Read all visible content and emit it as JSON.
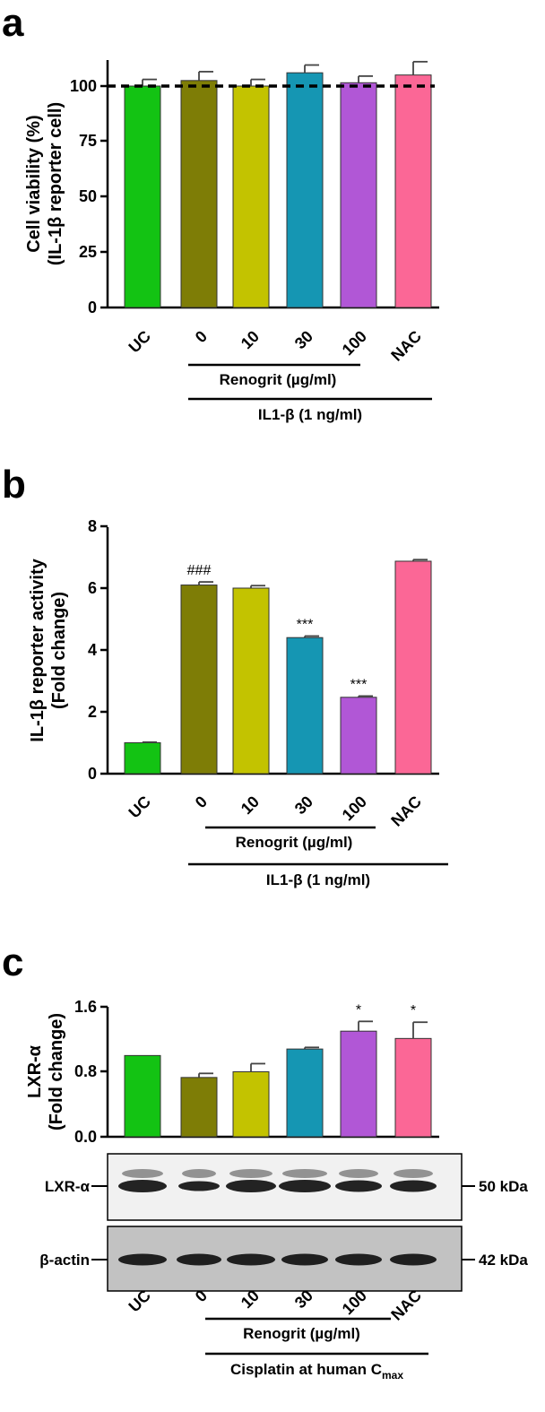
{
  "panels": [
    {
      "letter": "a",
      "ylabel_lines": [
        "Cell viability (%)",
        "(IL-1β reporter cell)"
      ],
      "groups": [
        "Renogrit (µg/ml)",
        "IL1-β (1 ng/ml)"
      ]
    },
    {
      "letter": "b",
      "ylabel_lines": [
        "IL-1β reporter activity",
        "(Fold change)"
      ],
      "groups": [
        "Renogrit (µg/ml)",
        "IL1-β (1 ng/ml)"
      ]
    },
    {
      "letter": "c",
      "ylabel_lines": [
        "LXR-α",
        "(Fold change)"
      ],
      "groups": [
        "Renogrit (µg/ml)",
        "Cisplatin at human C",
        "max"
      ],
      "blots": [
        {
          "label": "LXR-α",
          "size": "50 kDa"
        },
        {
          "label": "β-actin",
          "size": "42 kDa"
        }
      ]
    }
  ],
  "colors": [
    "#13c313",
    "#7e7d06",
    "#c3c300",
    "#1596b3",
    "#b157d6",
    "#fb6796"
  ],
  "chart_data": [
    {
      "type": "bar",
      "categories": [
        "UC",
        "0",
        "10",
        "30",
        "100",
        "NAC"
      ],
      "values": [
        100,
        102.5,
        100,
        106,
        101.5,
        105
      ],
      "errors": [
        3,
        4,
        3,
        3.5,
        3,
        6
      ],
      "reference_line": 100,
      "yticks": [
        "0",
        "25",
        "50",
        "75",
        "100"
      ],
      "ylim": [
        0,
        113
      ]
    },
    {
      "type": "bar",
      "categories": [
        "UC",
        "0",
        "10",
        "30",
        "100",
        "NAC"
      ],
      "values": [
        1.0,
        6.1,
        6.0,
        4.4,
        2.47,
        6.87
      ],
      "errors": [
        0.02,
        0.1,
        0.08,
        0.05,
        0.04,
        0.05
      ],
      "annotations": [
        "",
        "###",
        "",
        "***",
        "***",
        ""
      ],
      "yticks": [
        "0",
        "2",
        "4",
        "6",
        "8"
      ],
      "ylim": [
        0,
        8
      ]
    },
    {
      "type": "bar",
      "categories": [
        "UC",
        "0",
        "10",
        "30",
        "100",
        "NAC"
      ],
      "values": [
        1.0,
        0.73,
        0.8,
        1.08,
        1.3,
        1.21
      ],
      "errors": [
        0,
        0.05,
        0.1,
        0.02,
        0.12,
        0.2
      ],
      "annotations": [
        "",
        "",
        "",
        "",
        "*",
        "*"
      ],
      "yticks": [
        "0.0",
        "0.8",
        "1.6"
      ],
      "ylim": [
        0,
        1.6
      ]
    }
  ]
}
